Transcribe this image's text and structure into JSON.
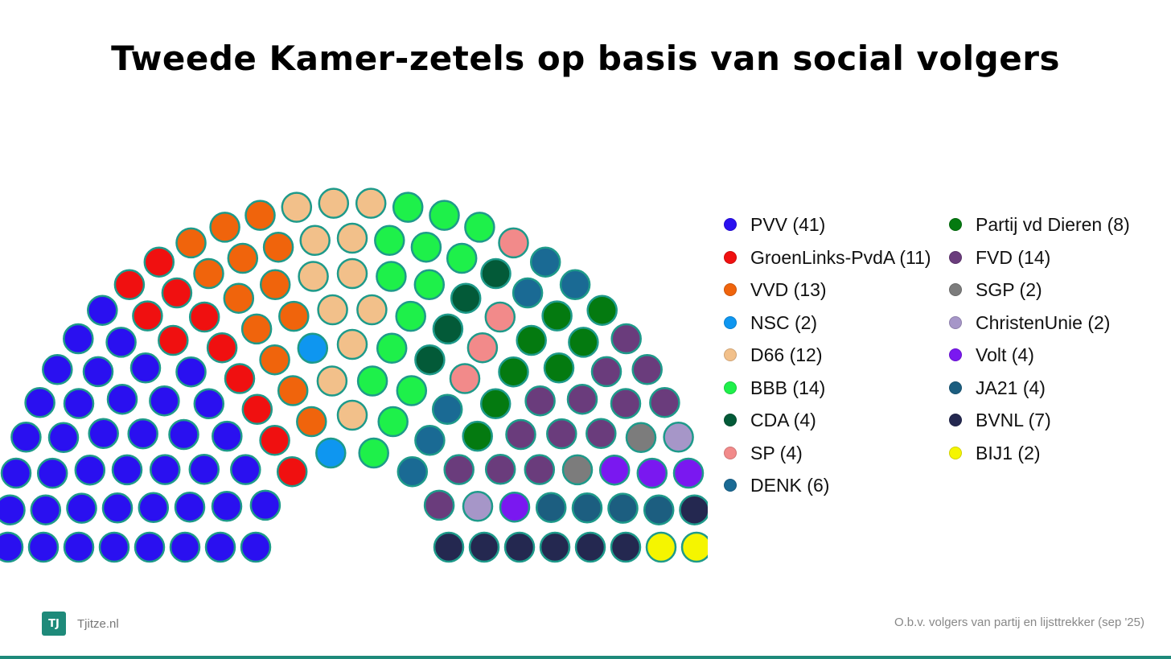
{
  "title": "Tweede Kamer-zetels op basis van social volgers",
  "chart_data": {
    "type": "parliament",
    "total_seats": 150,
    "seat_border_color": "#1e9a8a",
    "series": [
      {
        "name": "PVV",
        "seats": 41,
        "color": "#2a10f0",
        "label": "PVV (41)"
      },
      {
        "name": "GroenLinks-PvdA",
        "seats": 11,
        "color": "#f01010",
        "label": "GroenLinks-PvdA (11)"
      },
      {
        "name": "VVD",
        "seats": 13,
        "color": "#f0640c",
        "label": "VVD (13)"
      },
      {
        "name": "NSC",
        "seats": 2,
        "color": "#0e96f0",
        "label": "NSC (2)"
      },
      {
        "name": "D66",
        "seats": 12,
        "color": "#f2c08a",
        "label": "D66 (12)"
      },
      {
        "name": "BBB",
        "seats": 14,
        "color": "#1ef04a",
        "label": "BBB (14)"
      },
      {
        "name": "CDA",
        "seats": 4,
        "color": "#035a38",
        "label": "CDA (4)"
      },
      {
        "name": "SP",
        "seats": 4,
        "color": "#f28a8a",
        "label": "SP (4)"
      },
      {
        "name": "DENK",
        "seats": 6,
        "color": "#1a6a94",
        "label": "DENK (6)"
      },
      {
        "name": "Partij vd Dieren",
        "seats": 8,
        "color": "#047a10",
        "label": "Partij vd Dieren (8)"
      },
      {
        "name": "FVD",
        "seats": 14,
        "color": "#6a3c7c",
        "label": "FVD (14)"
      },
      {
        "name": "SGP",
        "seats": 2,
        "color": "#7c7c7c",
        "label": "SGP (2)"
      },
      {
        "name": "ChristenUnie",
        "seats": 2,
        "color": "#a696c8",
        "label": "ChristenUnie (2)"
      },
      {
        "name": "Volt",
        "seats": 4,
        "color": "#7a18f0",
        "label": "Volt (4)"
      },
      {
        "name": "JA21",
        "seats": 4,
        "color": "#1c5e80",
        "label": "JA21 (4)"
      },
      {
        "name": "BVNL",
        "seats": 7,
        "color": "#242850",
        "label": "BVNL (7)"
      },
      {
        "name": "BIJ1",
        "seats": 2,
        "color": "#f5f500",
        "label": "BIJ1 (2)"
      }
    ],
    "legend_columns": [
      [
        "PVV",
        "GroenLinks-PvdA",
        "VVD",
        "NSC",
        "D66",
        "BBB",
        "CDA",
        "SP",
        "DENK"
      ],
      [
        "Partij vd Dieren",
        "FVD",
        "SGP",
        "ChristenUnie",
        "Volt",
        "JA21",
        "BVNL",
        "BIJ1"
      ]
    ]
  },
  "brand": {
    "logo_text": "TJ",
    "name": "Tjitze.nl",
    "accent": "#1e8a7a"
  },
  "footnote": "O.b.v. volgers van partij en lijsttrekker (sep '25)"
}
